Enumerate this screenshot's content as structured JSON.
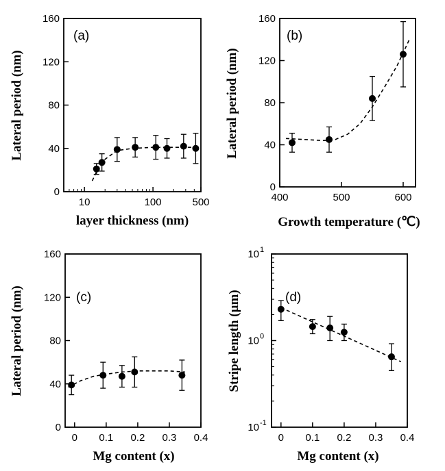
{
  "chart_data": [
    {
      "type": "scatter",
      "panel_label": "(a)",
      "xlabel": "layer thickness (nm)",
      "ylabel": "Lateral period (nm)",
      "xscale": "log",
      "xlim": [
        5,
        500
      ],
      "ylim": [
        0,
        160
      ],
      "xticks": [
        10,
        100,
        500
      ],
      "xtick_labels": [
        "10",
        "100",
        "500"
      ],
      "yticks": [
        0,
        40,
        80,
        120,
        160
      ],
      "ytick_labels": [
        "0",
        "40",
        "80",
        "120",
        "160"
      ],
      "points": [
        {
          "x": 15,
          "y": 21,
          "err": 5
        },
        {
          "x": 18,
          "y": 27,
          "err": 8
        },
        {
          "x": 30,
          "y": 39,
          "err": 11
        },
        {
          "x": 55,
          "y": 41,
          "err": 9
        },
        {
          "x": 110,
          "y": 41,
          "err": 11
        },
        {
          "x": 160,
          "y": 40,
          "err": 9
        },
        {
          "x": 280,
          "y": 42,
          "err": 11
        },
        {
          "x": 420,
          "y": 40,
          "err": 14
        }
      ],
      "fit": [
        [
          13,
          10
        ],
        [
          16,
          22
        ],
        [
          20,
          30
        ],
        [
          30,
          38
        ],
        [
          50,
          40
        ],
        [
          100,
          41
        ],
        [
          200,
          41
        ],
        [
          450,
          41
        ]
      ],
      "grid": false,
      "legend": "none"
    },
    {
      "type": "scatter",
      "panel_label": "(b)",
      "xlabel": "Growth temperature (℃)",
      "ylabel": "Lateral period (nm)",
      "xscale": "linear",
      "xlim": [
        400,
        620
      ],
      "ylim": [
        0,
        160
      ],
      "xticks": [
        400,
        500,
        600
      ],
      "xtick_labels": [
        "400",
        "500",
        "600"
      ],
      "yticks": [
        0,
        40,
        80,
        120,
        160
      ],
      "ytick_labels": [
        "0",
        "40",
        "80",
        "120",
        "160"
      ],
      "points": [
        {
          "x": 420,
          "y": 42,
          "err": 9
        },
        {
          "x": 480,
          "y": 45,
          "err": 12
        },
        {
          "x": 550,
          "y": 84,
          "err": 21
        },
        {
          "x": 600,
          "y": 126,
          "err": 31
        }
      ],
      "fit": [
        [
          410,
          46
        ],
        [
          440,
          45
        ],
        [
          470,
          44
        ],
        [
          490,
          45
        ],
        [
          510,
          50
        ],
        [
          530,
          60
        ],
        [
          550,
          76
        ],
        [
          570,
          95
        ],
        [
          590,
          115
        ],
        [
          610,
          140
        ]
      ],
      "grid": false,
      "legend": "none"
    },
    {
      "type": "scatter",
      "panel_label": "(c)",
      "xlabel": "Mg content (x)",
      "ylabel": "Lateral period (nm)",
      "xscale": "linear",
      "xlim": [
        -0.03,
        0.4
      ],
      "ylim": [
        0,
        160
      ],
      "xticks": [
        0,
        0.1,
        0.2,
        0.3,
        0.4
      ],
      "xtick_labels": [
        "0",
        "0.1",
        "0.2",
        "0.3",
        "0.4"
      ],
      "yticks": [
        0,
        40,
        80,
        120,
        160
      ],
      "ytick_labels": [
        "0",
        "40",
        "80",
        "120",
        "160"
      ],
      "points": [
        {
          "x": -0.01,
          "y": 39,
          "err": 9
        },
        {
          "x": 0.09,
          "y": 48,
          "err": 12
        },
        {
          "x": 0.15,
          "y": 47,
          "err": 10
        },
        {
          "x": 0.19,
          "y": 51,
          "err": 14
        },
        {
          "x": 0.34,
          "y": 48,
          "err": 14
        }
      ],
      "fit": [
        [
          -0.02,
          37
        ],
        [
          0.02,
          43
        ],
        [
          0.06,
          47
        ],
        [
          0.1,
          49
        ],
        [
          0.15,
          51
        ],
        [
          0.2,
          52
        ],
        [
          0.25,
          52
        ],
        [
          0.3,
          52
        ],
        [
          0.35,
          51
        ]
      ],
      "grid": false,
      "legend": "none"
    },
    {
      "type": "scatter",
      "panel_label": "(d)",
      "xlabel": "Mg content (x)",
      "ylabel": "Stripe length (µm)",
      "yscale": "log",
      "xscale": "linear",
      "xlim": [
        -0.03,
        0.4
      ],
      "ylim": [
        0.1,
        10
      ],
      "xticks": [
        0,
        0.1,
        0.2,
        0.3,
        0.4
      ],
      "xtick_labels": [
        "0",
        "0.1",
        "0.2",
        "0.3",
        "0.4"
      ],
      "yticks": [
        0.1,
        1,
        10
      ],
      "ytick_labels": [
        "10",
        "10",
        "10"
      ],
      "ytick_exponents": [
        "-1",
        "0",
        "1"
      ],
      "points": [
        {
          "x": 0.0,
          "y": 2.3,
          "elo": 1.7,
          "ehi": 2.9
        },
        {
          "x": 0.1,
          "y": 1.45,
          "elo": 1.2,
          "ehi": 1.75
        },
        {
          "x": 0.155,
          "y": 1.4,
          "elo": 1.0,
          "ehi": 1.9
        },
        {
          "x": 0.2,
          "y": 1.25,
          "elo": 1.0,
          "ehi": 1.55
        },
        {
          "x": 0.35,
          "y": 0.65,
          "elo": 0.45,
          "ehi": 0.92
        }
      ],
      "fit": [
        [
          0.0,
          2.4
        ],
        [
          0.38,
          0.57
        ]
      ],
      "grid": false,
      "legend": "none"
    }
  ]
}
